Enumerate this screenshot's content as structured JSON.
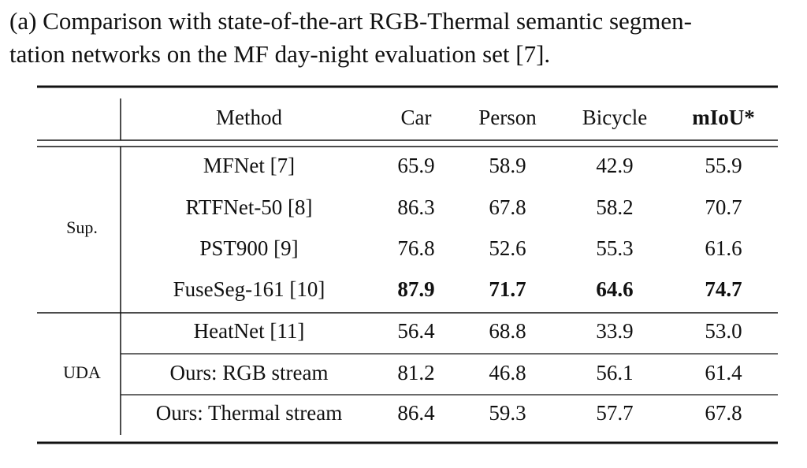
{
  "caption": [
    "(a) Comparison with state-of-the-art RGB-Thermal semantic segmen-",
    "tation networks on the MF day-night evaluation set [7]."
  ],
  "table": {
    "header": [
      "Method",
      "Car",
      "Person",
      "Bicycle",
      "mIoU*"
    ],
    "groups": [
      {
        "label": "Sup.",
        "rows": [
          [
            "MFNet [7]",
            "65.9",
            "58.9",
            "42.9",
            "55.9"
          ],
          [
            "RTFNet-50 [8]",
            "86.3",
            "67.8",
            "58.2",
            "70.7"
          ],
          [
            "PST900 [9]",
            "76.8",
            "52.6",
            "55.3",
            "61.6"
          ],
          [
            "FuseSeg-161 [10]",
            "87.9",
            "71.7",
            "64.6",
            "74.7"
          ]
        ]
      },
      {
        "label": "UDA",
        "rows": [
          [
            "HeatNet [11]",
            "56.4",
            "68.8",
            "33.9",
            "53.0"
          ],
          [
            "Ours: RGB stream",
            "81.2",
            "46.8",
            "56.1",
            "61.4"
          ],
          [
            "Ours: Thermal stream",
            "86.4",
            "59.3",
            "57.7",
            "67.8"
          ]
        ]
      }
    ]
  }
}
